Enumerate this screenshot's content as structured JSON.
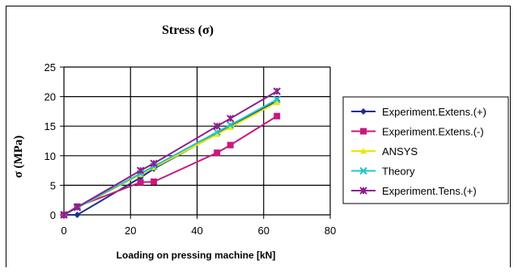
{
  "chart_data": {
    "type": "line",
    "title": "Stress (σ)",
    "xlabel": "Loading on pressing machine [kN]",
    "ylabel": "σ (MPa)",
    "xlim": [
      0,
      80
    ],
    "ylim": [
      0,
      25
    ],
    "xticks": [
      0,
      20,
      40,
      60,
      80
    ],
    "yticks": [
      0,
      5,
      10,
      15,
      20,
      25
    ],
    "grid": true,
    "legend": "right",
    "series": [
      {
        "name": "Experiment.Extens.(+)",
        "color": "#1F2F8F",
        "marker": "diamond",
        "x": [
          0,
          4,
          23,
          27,
          46,
          50,
          64
        ],
        "y": [
          0,
          0,
          6.3,
          7.8,
          13.7,
          15.0,
          19.3
        ]
      },
      {
        "name": "Experiment.Extens.(-)",
        "color": "#C8197F",
        "marker": "square",
        "x": [
          0,
          4,
          23,
          27,
          46,
          50,
          64
        ],
        "y": [
          0,
          1.4,
          5.5,
          5.6,
          10.5,
          11.8,
          16.7
        ]
      },
      {
        "name": "ANSYS",
        "color": "#E8E800",
        "marker": "triangle",
        "x": [
          0,
          4,
          23,
          27,
          46,
          50,
          64
        ],
        "y": [
          0,
          1.2,
          6.8,
          8.0,
          13.6,
          14.8,
          19.0
        ]
      },
      {
        "name": "Theory",
        "color": "#25C4C4",
        "marker": "x",
        "x": [
          0,
          4,
          23,
          27,
          46,
          50,
          64
        ],
        "y": [
          0,
          1.2,
          7.0,
          8.2,
          14.0,
          15.2,
          19.5
        ]
      },
      {
        "name": "Experiment.Tens.(+)",
        "color": "#8B1F8F",
        "marker": "star",
        "x": [
          0,
          4,
          23,
          27,
          46,
          50,
          64
        ],
        "y": [
          0,
          1.3,
          7.5,
          8.7,
          15.0,
          16.3,
          20.9
        ]
      }
    ]
  }
}
